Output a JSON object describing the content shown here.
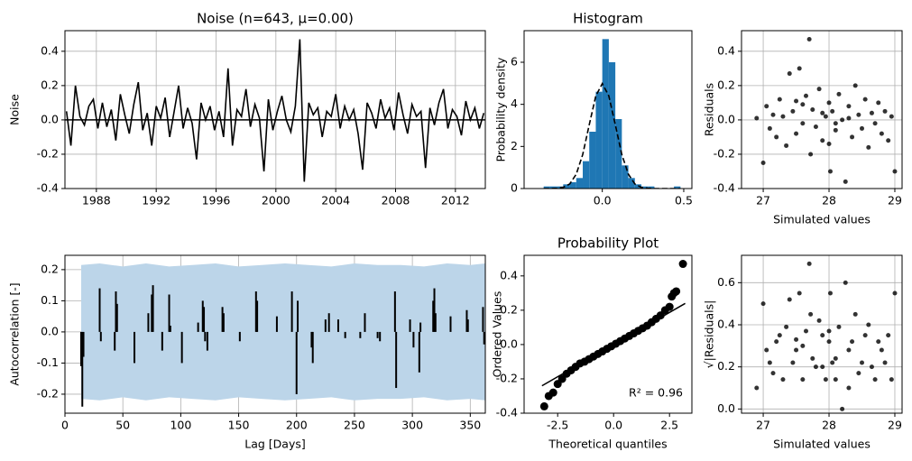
{
  "chart_data": [
    {
      "type": "line",
      "title": "Noise (n=643, μ=0.00)",
      "y_label": "Noise",
      "color": "#000000",
      "grid": true,
      "zero_line": true,
      "x": [
        1986.0,
        1986.3,
        1986.6,
        1986.9,
        1987.2,
        1987.5,
        1987.8,
        1988.1,
        1988.4,
        1988.7,
        1989.0,
        1989.3,
        1989.6,
        1989.9,
        1990.2,
        1990.5,
        1990.8,
        1991.1,
        1991.4,
        1991.7,
        1992.0,
        1992.3,
        1992.6,
        1992.9,
        1993.2,
        1993.5,
        1993.8,
        1994.1,
        1994.4,
        1994.7,
        1995.0,
        1995.3,
        1995.6,
        1995.9,
        1996.2,
        1996.5,
        1996.8,
        1997.1,
        1997.4,
        1997.7,
        1998.0,
        1998.3,
        1998.6,
        1998.9,
        1999.2,
        1999.5,
        1999.8,
        2000.1,
        2000.4,
        2000.7,
        2001.0,
        2001.3,
        2001.6,
        2001.9,
        2002.2,
        2002.5,
        2002.8,
        2003.1,
        2003.4,
        2003.7,
        2004.0,
        2004.3,
        2004.6,
        2004.9,
        2005.2,
        2005.5,
        2005.8,
        2006.1,
        2006.4,
        2006.7,
        2007.0,
        2007.3,
        2007.6,
        2007.9,
        2008.2,
        2008.5,
        2008.8,
        2009.1,
        2009.4,
        2009.7,
        2010.0,
        2010.3,
        2010.6,
        2010.9,
        2011.2,
        2011.5,
        2011.8,
        2012.1,
        2012.4,
        2012.7,
        2013.0,
        2013.3,
        2013.6,
        2013.9
      ],
      "values": [
        0.05,
        -0.15,
        0.2,
        0.02,
        -0.03,
        0.08,
        0.12,
        -0.05,
        0.1,
        -0.04,
        0.06,
        -0.12,
        0.15,
        0.03,
        -0.08,
        0.09,
        0.22,
        -0.06,
        0.04,
        -0.15,
        0.08,
        0.01,
        0.13,
        -0.1,
        0.05,
        0.2,
        -0.05,
        0.07,
        -0.02,
        -0.23,
        0.1,
        0.0,
        0.08,
        -0.06,
        0.05,
        -0.1,
        0.3,
        -0.15,
        0.06,
        0.02,
        0.18,
        -0.04,
        0.09,
        0.01,
        -0.3,
        0.12,
        -0.06,
        0.05,
        0.14,
        0.0,
        -0.07,
        0.08,
        0.47,
        -0.36,
        0.1,
        0.03,
        0.07,
        -0.1,
        0.05,
        0.02,
        0.15,
        -0.05,
        0.08,
        0.0,
        0.06,
        -0.08,
        -0.29,
        0.1,
        0.04,
        -0.05,
        0.12,
        0.01,
        0.07,
        -0.06,
        0.16,
        0.03,
        -0.08,
        0.09,
        0.02,
        0.05,
        -0.28,
        0.07,
        -0.03,
        0.1,
        0.18,
        -0.05,
        0.06,
        0.02,
        -0.09,
        0.11,
        0.0,
        0.07,
        -0.05,
        0.04
      ],
      "xlim": [
        1985.9,
        2014.0
      ],
      "xticks": [
        1988,
        1992,
        1996,
        2000,
        2004,
        2008,
        2012
      ],
      "ylim": [
        -0.4,
        0.52
      ],
      "yticks": [
        -0.4,
        -0.2,
        {
          "value": 0,
          "label": "0.0"
        },
        0.2,
        0.4
      ]
    },
    {
      "type": "histogram",
      "title": "Histogram",
      "y_label": "Probability density",
      "color": "#1f77b4",
      "grid": false,
      "bins": [
        -0.36,
        -0.32,
        -0.28,
        -0.24,
        -0.2,
        -0.16,
        -0.12,
        -0.08,
        -0.04,
        0.0,
        0.04,
        0.08,
        0.12,
        0.16,
        0.2,
        0.24,
        0.28,
        0.32,
        0.36,
        0.4,
        0.44,
        0.48
      ],
      "values": [
        0.1,
        0.1,
        0.1,
        0.2,
        0.3,
        0.5,
        1.3,
        2.7,
        4.6,
        7.1,
        6.0,
        3.3,
        1.1,
        0.5,
        0.2,
        0.1,
        0.1,
        0.0,
        0.0,
        0.0,
        0.1
      ],
      "curve": {
        "x": [
          -0.36,
          -0.32,
          -0.28,
          -0.24,
          -0.2,
          -0.16,
          -0.12,
          -0.08,
          -0.04,
          0.0,
          0.04,
          0.08,
          0.12,
          0.16,
          0.2,
          0.24,
          0.28,
          0.32,
          0.36,
          0.4,
          0.44,
          0.48
        ],
        "values": [
          0.0,
          0.002,
          0.011,
          0.055,
          0.22,
          0.68,
          1.62,
          3.03,
          4.4,
          4.99,
          4.4,
          3.03,
          1.62,
          0.68,
          0.22,
          0.055,
          0.011,
          0.002,
          0.0,
          0.0,
          0.0,
          0.0
        ]
      },
      "xlim": [
        -0.48,
        0.55
      ],
      "xticks": [
        {
          "value": 0,
          "label": "0.0"
        },
        0.5
      ],
      "ylim": [
        0,
        7.5
      ],
      "yticks": [
        0,
        2,
        4,
        6
      ]
    },
    {
      "type": "scatter",
      "x_label": "Simulated values",
      "y_label": "Residuals",
      "color": "#000000",
      "grid": true,
      "x": [
        26.9,
        27.0,
        27.05,
        27.1,
        27.15,
        27.2,
        27.25,
        27.3,
        27.35,
        27.4,
        27.45,
        27.5,
        27.55,
        27.6,
        27.65,
        27.7,
        27.72,
        27.75,
        27.8,
        27.85,
        27.9,
        27.95,
        28.0,
        28.02,
        28.05,
        28.1,
        28.15,
        28.2,
        28.25,
        28.3,
        28.35,
        28.4,
        28.45,
        28.5,
        28.55,
        28.6,
        28.65,
        28.7,
        28.75,
        28.8,
        28.85,
        28.9,
        28.95,
        29.0,
        27.6,
        27.9,
        28.1,
        28.3,
        27.5,
        28.0
      ],
      "values": [
        0.01,
        -0.25,
        0.08,
        -0.05,
        0.03,
        -0.1,
        0.12,
        0.02,
        -0.15,
        0.27,
        0.05,
        -0.08,
        0.3,
        -0.02,
        0.14,
        0.47,
        -0.2,
        0.06,
        -0.04,
        0.18,
        -0.12,
        0.02,
        0.1,
        -0.3,
        0.05,
        -0.06,
        0.15,
        0.0,
        -0.36,
        0.08,
        -0.1,
        0.2,
        0.03,
        -0.05,
        0.12,
        -0.16,
        0.04,
        -0.02,
        0.1,
        -0.08,
        0.05,
        -0.12,
        0.02,
        -0.3,
        0.09,
        0.04,
        -0.02,
        0.01,
        0.11,
        -0.14
      ],
      "xlim": [
        26.67,
        29.11
      ],
      "xticks": [
        27,
        28,
        29
      ],
      "ylim": [
        -0.4,
        0.52
      ],
      "yticks": [
        -0.4,
        -0.2,
        {
          "value": 0,
          "label": "0.0"
        },
        0.2,
        0.4
      ]
    },
    {
      "type": "bar",
      "x_label": "Lag [Days]",
      "y_label": "Autocorrelation [-]",
      "color": "#000000",
      "grid": true,
      "x": [
        14,
        15,
        16,
        30,
        31,
        43,
        44,
        45,
        60,
        72,
        75,
        76,
        84,
        90,
        91,
        101,
        115,
        119,
        120,
        121,
        123,
        136,
        137,
        151,
        165,
        166,
        183,
        196,
        200,
        201,
        213,
        214,
        225,
        228,
        236,
        242,
        255,
        259,
        270,
        272,
        285,
        286,
        298,
        301,
        306,
        307,
        318,
        319,
        320,
        333,
        347,
        348,
        361,
        362
      ],
      "values": [
        -0.11,
        -0.24,
        -0.08,
        0.14,
        -0.03,
        -0.06,
        0.13,
        0.09,
        -0.1,
        0.06,
        0.12,
        0.15,
        -0.06,
        0.12,
        0.02,
        -0.1,
        0.03,
        0.1,
        0.08,
        -0.03,
        -0.06,
        0.08,
        0.06,
        -0.03,
        0.13,
        0.1,
        0.05,
        0.13,
        -0.2,
        0.1,
        -0.05,
        -0.1,
        0.04,
        0.06,
        0.04,
        -0.02,
        -0.02,
        0.06,
        -0.02,
        -0.03,
        0.13,
        -0.18,
        0.04,
        -0.05,
        -0.13,
        0.03,
        0.1,
        0.14,
        0.06,
        0.05,
        0.07,
        0.04,
        0.08,
        -0.04
      ],
      "band": {
        "color": "#bcd5e9",
        "x": [
          14,
          30,
          50,
          70,
          90,
          110,
          130,
          150,
          170,
          190,
          210,
          230,
          250,
          270,
          290,
          310,
          330,
          350,
          363
        ],
        "upper": [
          0.215,
          0.22,
          0.21,
          0.22,
          0.21,
          0.215,
          0.22,
          0.21,
          0.215,
          0.22,
          0.215,
          0.21,
          0.22,
          0.215,
          0.215,
          0.21,
          0.22,
          0.215,
          0.22
        ],
        "lower": [
          -0.215,
          -0.22,
          -0.21,
          -0.22,
          -0.21,
          -0.215,
          -0.22,
          -0.21,
          -0.215,
          -0.22,
          -0.215,
          -0.21,
          -0.22,
          -0.215,
          -0.215,
          -0.21,
          -0.22,
          -0.215,
          -0.22
        ]
      },
      "xlim": [
        0,
        363
      ],
      "xticks": [
        0,
        50,
        100,
        150,
        200,
        250,
        300,
        350
      ],
      "ylim": [
        -0.261,
        0.246
      ],
      "yticks": [
        -0.2,
        -0.1,
        {
          "value": 0,
          "label": "0.0"
        },
        0.1,
        0.2
      ]
    },
    {
      "type": "probability",
      "title": "Probability Plot",
      "x_label": "Theoretical quantiles",
      "y_label": "Ordered Values",
      "color": "#000000",
      "grid": false,
      "annotation": "R² = 0.96",
      "x": [
        -3.1,
        -2.9,
        -2.7,
        -2.5,
        -2.3,
        -2.1,
        -1.9,
        -1.7,
        -1.5,
        -1.3,
        -1.1,
        -0.9,
        -0.7,
        -0.5,
        -0.3,
        -0.1,
        0.1,
        0.3,
        0.5,
        0.7,
        0.9,
        1.1,
        1.3,
        1.5,
        1.7,
        1.9,
        2.1,
        2.3,
        2.5,
        2.6,
        2.7,
        2.8,
        3.1
      ],
      "values": [
        -0.36,
        -0.3,
        -0.28,
        -0.23,
        -0.2,
        -0.17,
        -0.15,
        -0.13,
        -0.11,
        -0.1,
        -0.085,
        -0.07,
        -0.055,
        -0.04,
        -0.025,
        -0.01,
        0.005,
        0.02,
        0.035,
        0.05,
        0.065,
        0.08,
        0.095,
        0.11,
        0.13,
        0.15,
        0.17,
        0.2,
        0.22,
        0.28,
        0.3,
        0.31,
        0.47
      ],
      "fit": {
        "x": [
          -3.2,
          3.2
        ],
        "values": [
          -0.24,
          0.24
        ]
      },
      "xlim": [
        -4.0,
        3.5
      ],
      "xticks": [
        -2.5,
        {
          "value": 0,
          "label": "0.0"
        },
        2.5
      ],
      "ylim": [
        -0.4,
        0.52
      ],
      "yticks": [
        -0.4,
        -0.2,
        {
          "value": 0,
          "label": "0.0"
        },
        0.2,
        0.4
      ]
    },
    {
      "type": "scatter",
      "x_label": "Simulated values",
      "y_label": "√|Residuals|",
      "color": "#000000",
      "grid": true,
      "x": [
        26.9,
        27.0,
        27.05,
        27.1,
        27.15,
        27.2,
        27.25,
        27.3,
        27.35,
        27.4,
        27.45,
        27.5,
        27.55,
        27.6,
        27.65,
        27.7,
        27.72,
        27.75,
        27.8,
        27.85,
        27.9,
        27.95,
        28.0,
        28.02,
        28.05,
        28.1,
        28.15,
        28.2,
        28.25,
        28.3,
        28.35,
        28.4,
        28.45,
        28.5,
        28.55,
        28.6,
        28.65,
        28.7,
        28.75,
        28.8,
        28.85,
        28.9,
        28.95,
        29.0,
        27.6,
        27.9,
        28.1,
        28.3,
        27.5,
        28.0
      ],
      "values": [
        0.1,
        0.5,
        0.28,
        0.22,
        0.17,
        0.32,
        0.35,
        0.14,
        0.39,
        0.52,
        0.22,
        0.28,
        0.55,
        0.14,
        0.37,
        0.69,
        0.45,
        0.24,
        0.2,
        0.42,
        0.35,
        0.14,
        0.32,
        0.55,
        0.22,
        0.24,
        0.39,
        0.0,
        0.6,
        0.28,
        0.32,
        0.45,
        0.17,
        0.22,
        0.35,
        0.4,
        0.2,
        0.14,
        0.32,
        0.28,
        0.22,
        0.35,
        0.14,
        0.55,
        0.3,
        0.2,
        0.14,
        0.1,
        0.33,
        0.37
      ],
      "xlim": [
        26.67,
        29.11
      ],
      "xticks": [
        27,
        28,
        29
      ],
      "ylim": [
        -0.02,
        0.73
      ],
      "yticks": [
        {
          "value": 0,
          "label": "0.0"
        },
        0.2,
        0.4,
        0.6
      ]
    }
  ]
}
